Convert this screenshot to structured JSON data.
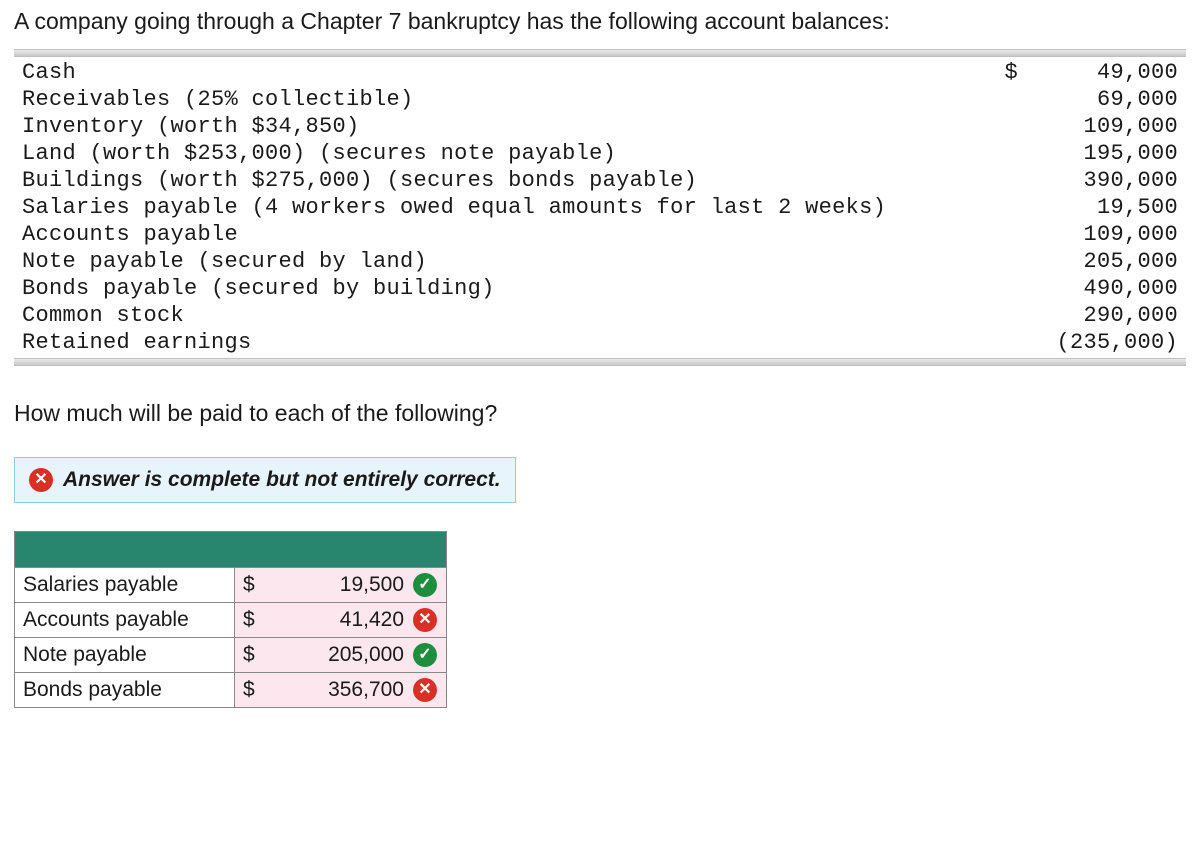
{
  "intro": "A company going through a Chapter 7 bankruptcy has the following account balances:",
  "currency_symbol": "$",
  "balances": [
    {
      "label": "Cash",
      "show_currency": true,
      "amount": "49,000"
    },
    {
      "label": "Receivables (25% collectible)",
      "show_currency": false,
      "amount": "69,000"
    },
    {
      "label": "Inventory (worth $34,850)",
      "show_currency": false,
      "amount": "109,000"
    },
    {
      "label": "Land (worth $253,000) (secures note payable)",
      "show_currency": false,
      "amount": "195,000"
    },
    {
      "label": "Buildings (worth $275,000) (secures bonds payable)",
      "show_currency": false,
      "amount": "390,000"
    },
    {
      "label": "Salaries payable (4 workers owed equal amounts for last 2 weeks)",
      "show_currency": false,
      "amount": "19,500"
    },
    {
      "label": "Accounts payable",
      "show_currency": false,
      "amount": "109,000"
    },
    {
      "label": "Note payable (secured by land)",
      "show_currency": false,
      "amount": "205,000"
    },
    {
      "label": "Bonds payable (secured by building)",
      "show_currency": false,
      "amount": "490,000"
    },
    {
      "label": "Common stock",
      "show_currency": false,
      "amount": "290,000"
    },
    {
      "label": "Retained earnings",
      "show_currency": false,
      "amount": "(235,000)"
    }
  ],
  "question": "How much will be paid to each of the following?",
  "feedback_text": "Answer is complete but not entirely correct.",
  "feedback_icon_glyph": "✕",
  "answers": [
    {
      "label": "Salaries payable",
      "value": "19,500",
      "correct": true
    },
    {
      "label": "Accounts payable",
      "value": "41,420",
      "correct": false
    },
    {
      "label": "Note payable",
      "value": "205,000",
      "correct": true
    },
    {
      "label": "Bonds payable",
      "value": "356,700",
      "correct": false
    }
  ],
  "glyph_check": "✓",
  "glyph_cross": "✕",
  "colors": {
    "header_green": "#29866e",
    "input_pink": "#fde7ef",
    "feedback_bg": "#e8f4fb",
    "feedback_bd": "#9cc8de",
    "mark_green": "#1e8e3e",
    "mark_red": "#d93025"
  }
}
